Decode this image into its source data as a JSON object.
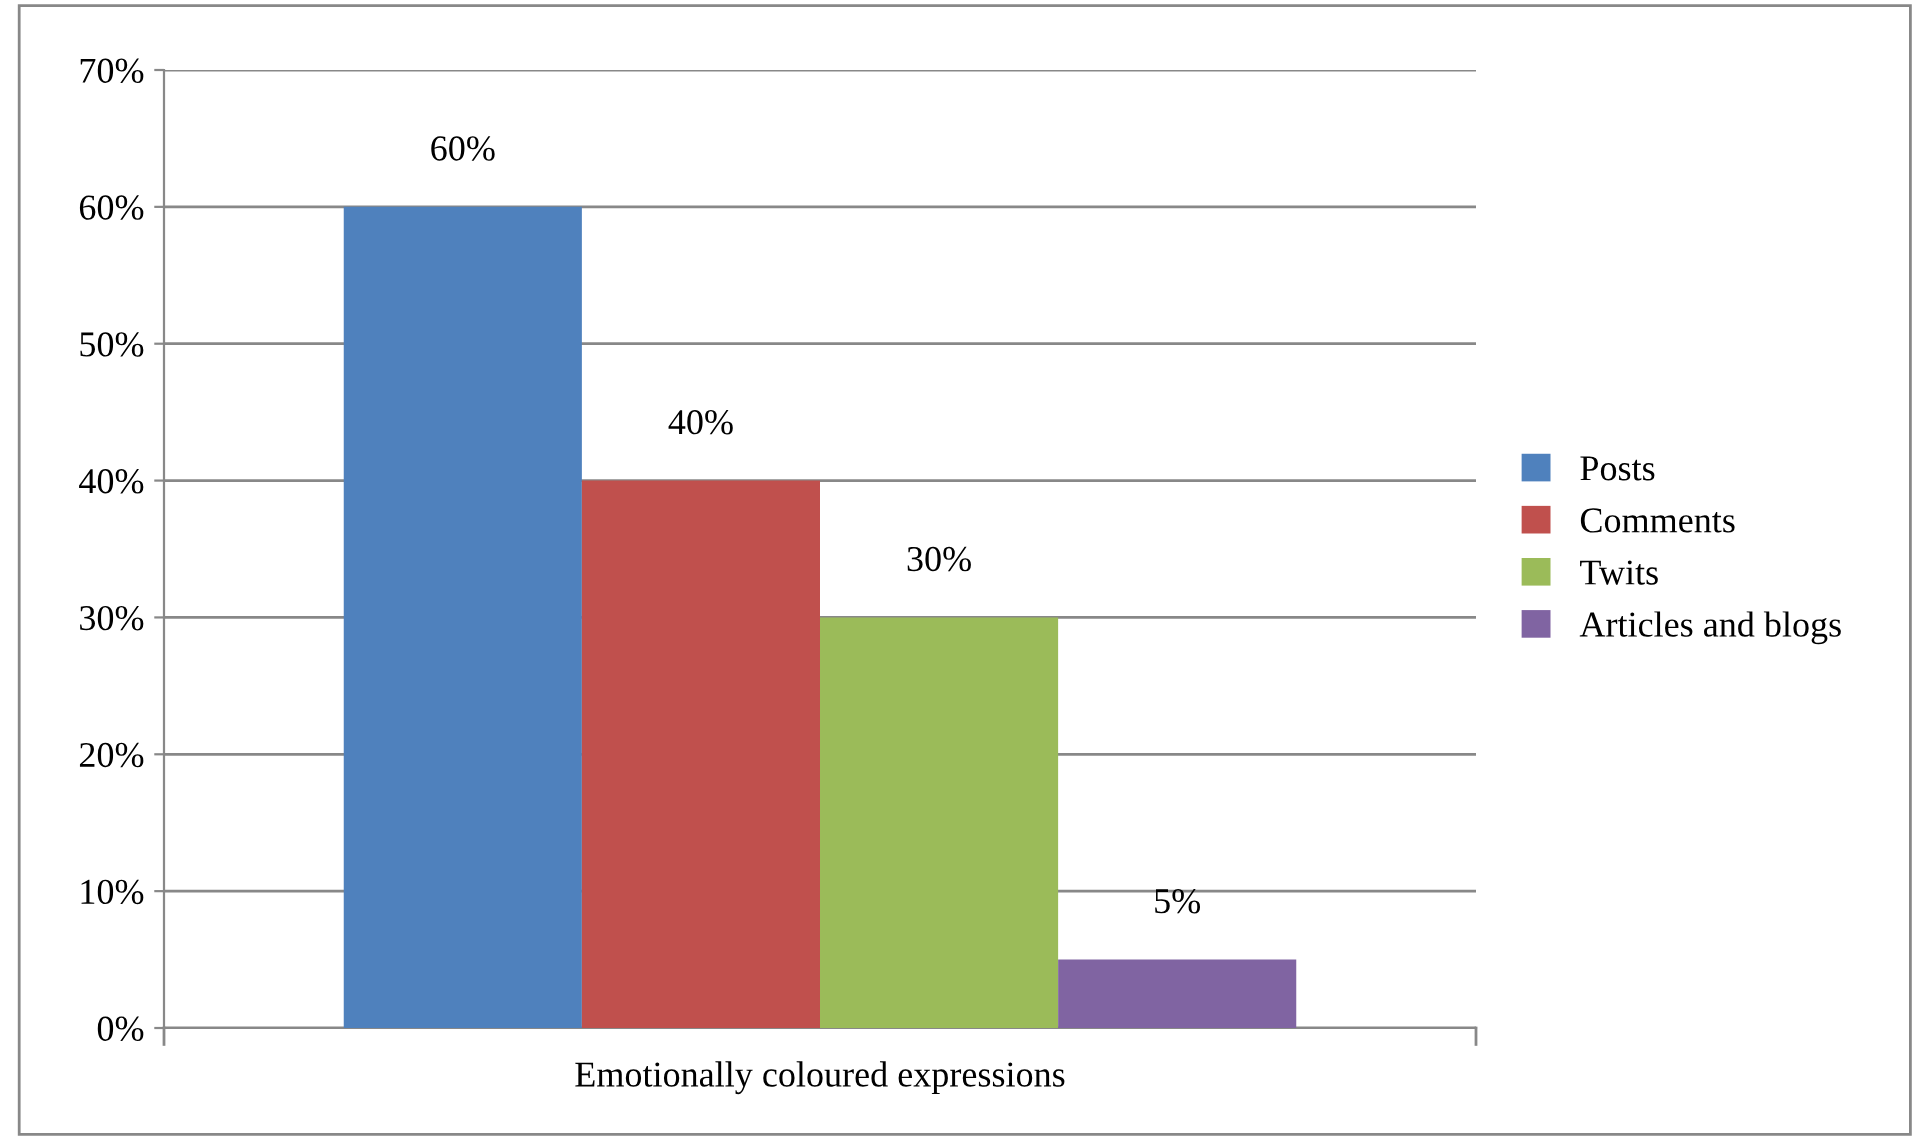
{
  "chart_data": {
    "type": "bar",
    "categories": [
      "Emotionally coloured expressions"
    ],
    "series": [
      {
        "name": "Posts",
        "color": "#4f81bd",
        "values": [
          60
        ],
        "value_labels": [
          "60%"
        ]
      },
      {
        "name": "Comments",
        "color": "#c0504d",
        "values": [
          40
        ],
        "value_labels": [
          "40%"
        ]
      },
      {
        "name": "Twits",
        "color": "#9bbb59",
        "values": [
          30
        ],
        "value_labels": [
          "30%"
        ]
      },
      {
        "name": "Articles and blogs",
        "color": "#8064a2",
        "values": [
          5
        ],
        "value_labels": [
          "5%"
        ]
      }
    ],
    "ylim": [
      0,
      70
    ],
    "yticks": [
      {
        "value": 0,
        "label": "0%"
      },
      {
        "value": 10,
        "label": "10%"
      },
      {
        "value": 20,
        "label": "20%"
      },
      {
        "value": 30,
        "label": "30%"
      },
      {
        "value": 40,
        "label": "40%"
      },
      {
        "value": 50,
        "label": "50%"
      },
      {
        "value": 60,
        "label": "60%"
      },
      {
        "value": 70,
        "label": "70%"
      }
    ],
    "grid": "y",
    "legend": "right"
  }
}
